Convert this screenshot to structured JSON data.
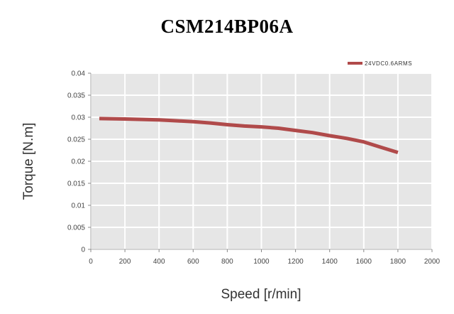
{
  "chart_data": {
    "type": "line",
    "title": "CSM214BP06A",
    "xlabel": "Speed [r/min]",
    "ylabel": "Torque [N.m]",
    "xlim": [
      0,
      2000
    ],
    "ylim": [
      0,
      0.04
    ],
    "x_ticks": [
      "0",
      "200",
      "400",
      "600",
      "800",
      "1000",
      "1200",
      "1400",
      "1600",
      "1800",
      "2000"
    ],
    "y_ticks": [
      "0",
      "0.005",
      "0.01",
      "0.015",
      "0.02",
      "0.025",
      "0.03",
      "0.035",
      "0.04"
    ],
    "grid": true,
    "legend_position": "top-right",
    "series": [
      {
        "name": "24VDC0.6ARMS",
        "color": "#b04a4a",
        "x": [
          50,
          200,
          400,
          500,
          600,
          700,
          800,
          900,
          1000,
          1100,
          1200,
          1300,
          1400,
          1500,
          1600,
          1700,
          1800
        ],
        "y": [
          0.0297,
          0.0296,
          0.0294,
          0.0292,
          0.029,
          0.0287,
          0.0283,
          0.028,
          0.0278,
          0.0275,
          0.027,
          0.0265,
          0.0258,
          0.0252,
          0.0244,
          0.0232,
          0.022
        ]
      }
    ]
  }
}
